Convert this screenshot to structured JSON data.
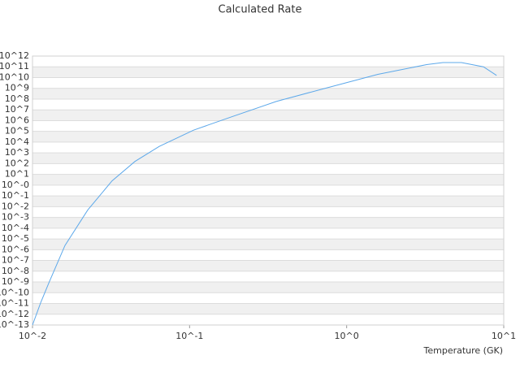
{
  "chart_data": {
    "type": "line",
    "title": "Calculated Rate",
    "x_label": "Temperature (GK)",
    "x_scale": "log",
    "y_scale": "log",
    "grid": true,
    "xlim": [
      0.01,
      10
    ],
    "ylim": [
      1e-13,
      1000000000000.0
    ],
    "xticks": [
      {
        "value": 0.01,
        "label": "10^-2"
      },
      {
        "value": 0.1,
        "label": "10^-1"
      },
      {
        "value": 1,
        "label": "10^0"
      },
      {
        "value": 10,
        "label": "10^1"
      }
    ],
    "yticks": [
      {
        "value": 1e-13,
        "label": "10^-13"
      },
      {
        "value": 1e-12,
        "label": "10^-12"
      },
      {
        "value": 1e-11,
        "label": "10^-11"
      },
      {
        "value": 1e-10,
        "label": "10^-10"
      },
      {
        "value": 1e-09,
        "label": "10^-9"
      },
      {
        "value": 1e-08,
        "label": "10^-8"
      },
      {
        "value": 1e-07,
        "label": "10^-7"
      },
      {
        "value": 1e-06,
        "label": "10^-6"
      },
      {
        "value": 1e-05,
        "label": "10^-5"
      },
      {
        "value": 0.0001,
        "label": "10^-4"
      },
      {
        "value": 0.001,
        "label": "10^-3"
      },
      {
        "value": 0.01,
        "label": "10^-2"
      },
      {
        "value": 0.1,
        "label": "10^-1"
      },
      {
        "value": 1,
        "label": "10^-0"
      },
      {
        "value": 10,
        "label": "10^1"
      },
      {
        "value": 100,
        "label": "10^2"
      },
      {
        "value": 1000,
        "label": "10^3"
      },
      {
        "value": 10000.0,
        "label": "10^4"
      },
      {
        "value": 100000.0,
        "label": "10^5"
      },
      {
        "value": 1000000.0,
        "label": "10^6"
      },
      {
        "value": 10000000.0,
        "label": "10^7"
      },
      {
        "value": 100000000.0,
        "label": "10^8"
      },
      {
        "value": 1000000000.0,
        "label": "10^9"
      },
      {
        "value": 10000000000.0,
        "label": "10^10"
      },
      {
        "value": 100000000000.0,
        "label": "10^11"
      },
      {
        "value": 1000000000000.0,
        "label": "10^12"
      }
    ],
    "x": [
      0.01,
      0.0113,
      0.0127,
      0.0161,
      0.0225,
      0.0321,
      0.0449,
      0.0641,
      0.106,
      0.181,
      0.356,
      0.728,
      1.58,
      3.23,
      4.1,
      5.38,
      7.43,
      9.0
    ],
    "series": [
      {
        "color": "#5ca8ea",
        "values": [
          1e-13,
          1.3e-11,
          8e-10,
          2.5e-06,
          0.005,
          2.5,
          160,
          4000,
          130000.0,
          2000000.0,
          60000000.0,
          1000000000.0,
          20000000000.0,
          160000000000.0,
          250000000000.0,
          250000000000.0,
          100000000000.0,
          16000000000.0
        ]
      }
    ]
  }
}
